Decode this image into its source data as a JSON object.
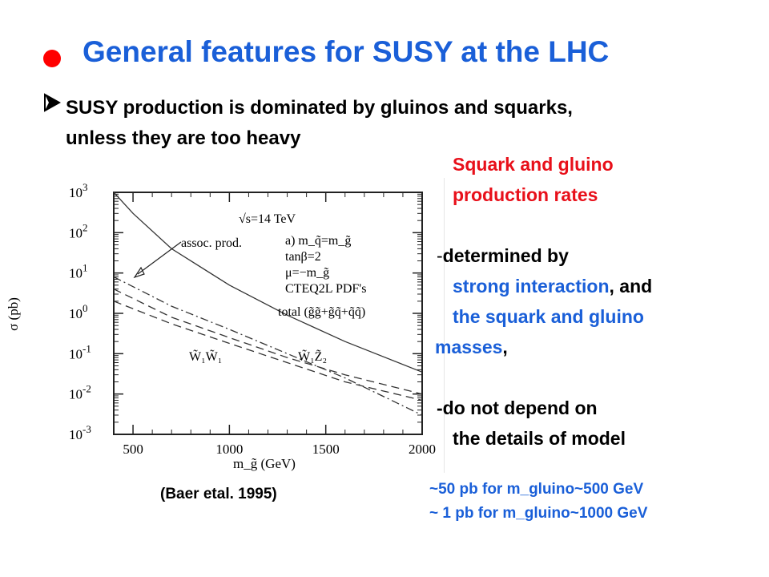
{
  "slide": {
    "title": "General features for SUSY at the LHC",
    "bullet_line1": "SUSY production is dominated by gluinos and squarks,",
    "bullet_line2": "unless they are too heavy",
    "citation": "(Baer etal. 1995)"
  },
  "right_text": {
    "heading_line1": "Squark and gluino",
    "heading_line2": "production rates",
    "determined_dash": "-",
    "determined_by": "determined by",
    "strong_interaction": "strong interaction",
    "and_comma": ", and",
    "squark_gluino_line": "the squark  and  gluino",
    "masses": "masses",
    "masses_comma": ",",
    "not_depend": "-do not depend on",
    "details_of_model": "the details of model",
    "note_line1": "~50 pb for m_gluino~500 GeV",
    "note_line2": "~ 1 pb for m_gluino~1000 GeV"
  },
  "colors": {
    "title_blue": "#1a5fd8",
    "heading_red": "#e8101a",
    "bullet_red": "#ff0000"
  },
  "chart_data": {
    "type": "line",
    "y_scale": "log",
    "xlabel": "m_g̃ (GeV)",
    "ylabel": "σ (pb)",
    "xlim": [
      400,
      2000
    ],
    "ylim": [
      0.001,
      1000
    ],
    "x_ticks": [
      "500",
      "1000",
      "1500",
      "2000"
    ],
    "y_ticks": [
      "10^3",
      "10^2",
      "10^1",
      "10^0",
      "10^-1",
      "10^-2",
      "10^-3"
    ],
    "annotations": {
      "sqrt_s": "√s=14 TeV",
      "case": "a)  m_q̃=m_g̃",
      "tanb": "tanβ=2",
      "mu": "μ=−m_g̃",
      "pdf": "CTEQ2L PDF's",
      "assoc": "assoc. prod.",
      "total_label": "total (g̃g̃+g̃q̃+q̃q̃)",
      "w1w1_label": "W̃₁W̃₁",
      "w1z2_label": "W̃₁Z̃₂"
    },
    "series": [
      {
        "id": "total",
        "style": "solid",
        "x": [
          400,
          500,
          700,
          1000,
          1300,
          1600,
          2000
        ],
        "y": [
          1000,
          300,
          40,
          5,
          0.9,
          0.2,
          0.035
        ]
      },
      {
        "id": "w1w1",
        "style": "dash",
        "x": [
          400,
          700,
          1000,
          1300,
          1600,
          2000
        ],
        "y": [
          4,
          0.8,
          0.25,
          0.08,
          0.03,
          0.01
        ]
      },
      {
        "id": "w1z2",
        "style": "dash",
        "x": [
          400,
          700,
          1000,
          1300,
          1600,
          2000
        ],
        "y": [
          2,
          0.55,
          0.18,
          0.06,
          0.02,
          0.007
        ]
      },
      {
        "id": "assoc",
        "style": "dashdot",
        "x": [
          400,
          700,
          1000,
          1300,
          1600,
          2000
        ],
        "y": [
          8,
          1.5,
          0.4,
          0.1,
          0.025,
          0.003
        ]
      }
    ]
  }
}
